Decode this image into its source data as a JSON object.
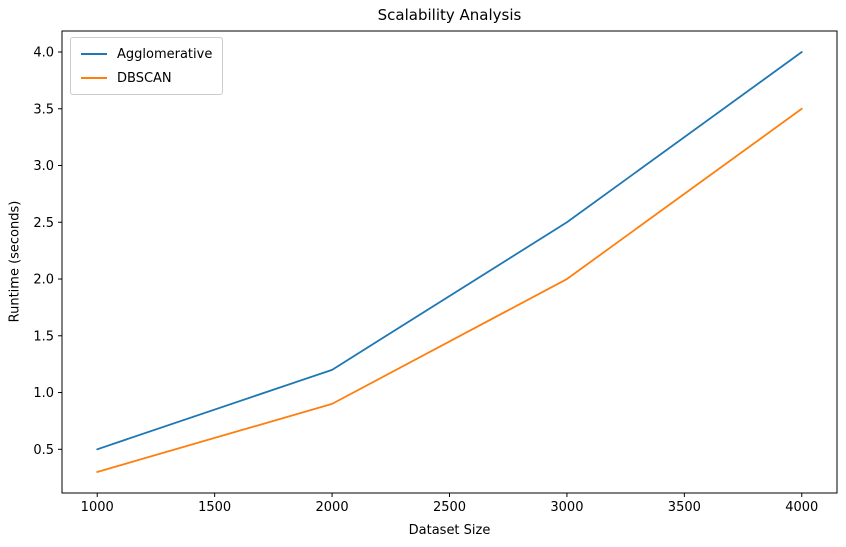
{
  "chart_data": {
    "type": "line",
    "title": "Scalability Analysis",
    "xlabel": "Dataset Size",
    "ylabel": "Runtime (seconds)",
    "x": [
      1000,
      2000,
      3000,
      4000
    ],
    "series": [
      {
        "name": "Agglomerative",
        "color": "#1f77b4",
        "values": [
          0.5,
          1.2,
          2.5,
          4.0
        ]
      },
      {
        "name": "DBSCAN",
        "color": "#ff7f0e",
        "values": [
          0.3,
          0.9,
          2.0,
          3.5
        ]
      }
    ],
    "xticks": [
      1000,
      1500,
      2000,
      2500,
      3000,
      3500,
      4000
    ],
    "yticks": [
      0.5,
      1.0,
      1.5,
      2.0,
      2.5,
      3.0,
      3.5,
      4.0
    ],
    "xlim": [
      850,
      4150
    ],
    "ylim": [
      0.115,
      4.185
    ],
    "grid": false,
    "legend_position": "upper left",
    "frame_color": "#000000",
    "background_color": "#ffffff"
  }
}
